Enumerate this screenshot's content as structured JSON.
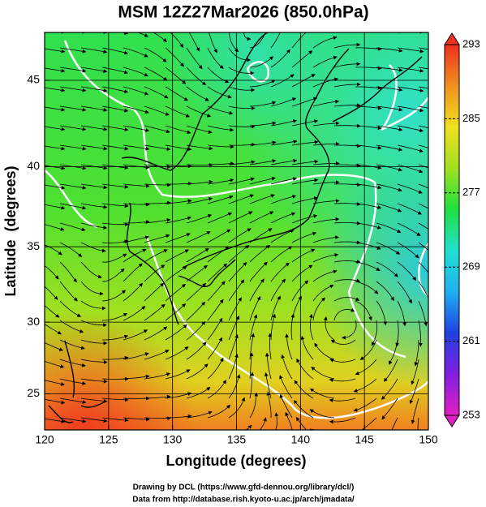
{
  "chart_data": {
    "type": "map",
    "title": "MSM 12Z27Mar2026 (850.0hPa)",
    "x_label": "Longitude (degrees)",
    "y_label": "Latitude  (degrees)",
    "xlim": [
      120,
      150
    ],
    "xticks": [
      120,
      125,
      130,
      135,
      140,
      145,
      150
    ],
    "ylim": [
      22.4,
      47.6
    ],
    "yticks": [
      25,
      30,
      35,
      40,
      45
    ],
    "projection": "mercator",
    "grid": true,
    "colorbar": {
      "clim": [
        253,
        293
      ],
      "ticks": [
        253,
        261,
        269,
        277,
        285,
        293
      ],
      "colors": [
        "#e020c0",
        "#8020e0",
        "#2040e0",
        "#20b0f0",
        "#20e0d0",
        "#20e040",
        "#a0e020",
        "#f0e020",
        "#f09020",
        "#f03020"
      ]
    },
    "footer": [
      "Drawing by DCL (https://www.gfd-dennou.org/library/dcl/)",
      "Data from http://database.rish.kyoto-u.ac.jp/arch/jmadata/"
    ]
  }
}
